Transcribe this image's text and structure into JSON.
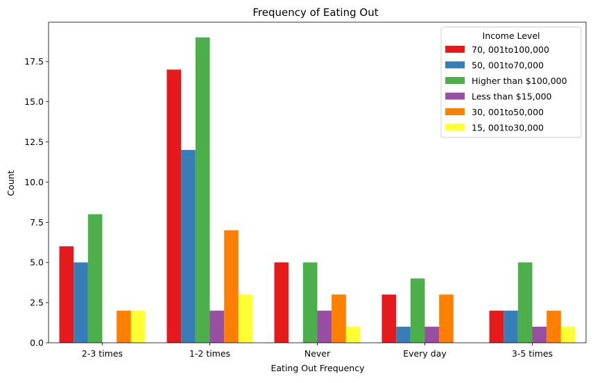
{
  "chart_data": {
    "type": "bar",
    "title": "Frequency of Eating Out",
    "xlabel": "Eating Out Frequency",
    "ylabel": "Count",
    "ylim": [
      0,
      19.95
    ],
    "yticks": [
      0.0,
      2.5,
      5.0,
      7.5,
      10.0,
      12.5,
      15.0,
      17.5
    ],
    "ytick_labels": [
      "0.0",
      "2.5",
      "5.0",
      "7.5",
      "10.0",
      "12.5",
      "15.0",
      "17.5"
    ],
    "categories": [
      "2-3 times",
      "1-2 times",
      "Never",
      "Every day",
      "3-5 times"
    ],
    "legend": {
      "title": "Income Level",
      "position": "top-right"
    },
    "grid": false,
    "series": [
      {
        "name": "$70,001 to $100,000",
        "label": "70, 001to100,000",
        "color": "#e41a1c",
        "values": [
          6,
          17,
          5,
          3,
          2
        ]
      },
      {
        "name": "$50,001 to $70,000",
        "label": "50, 001to70,000",
        "color": "#377eb8",
        "values": [
          5,
          12,
          0,
          1,
          2
        ]
      },
      {
        "name": "Higher than $100,000",
        "label": "Higher than $100,000",
        "color": "#4daf4a",
        "values": [
          8,
          19,
          5,
          4,
          5
        ]
      },
      {
        "name": "Less than $15,000",
        "label": "Less than $15,000",
        "color": "#984ea3",
        "values": [
          0,
          2,
          2,
          1,
          1
        ]
      },
      {
        "name": "$30,001 to $50,000",
        "label": "30, 001to50,000",
        "color": "#ff7f00",
        "values": [
          2,
          7,
          3,
          3,
          2
        ]
      },
      {
        "name": "$15,001 to $30,000",
        "label": "15, 001to30,000",
        "color": "#ffff33",
        "values": [
          2,
          3,
          1,
          0,
          1
        ]
      }
    ]
  }
}
